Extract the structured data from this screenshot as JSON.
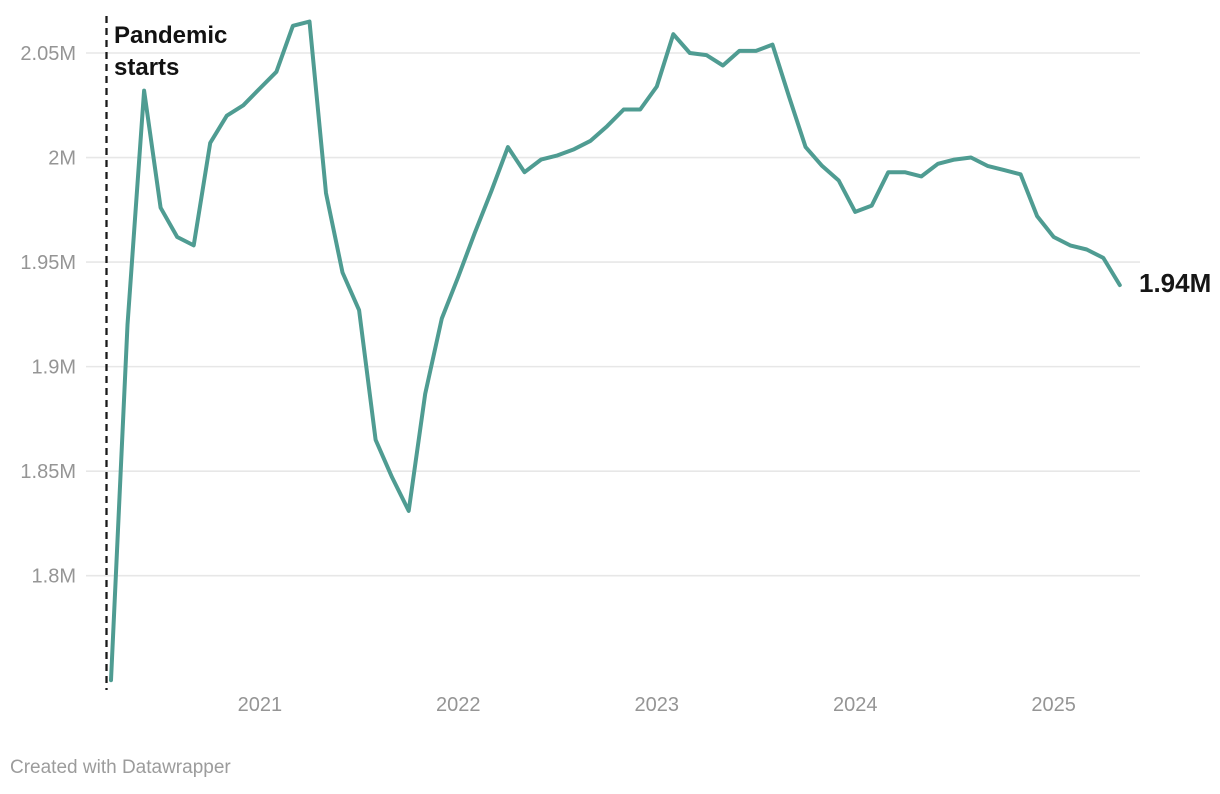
{
  "chart_data": {
    "type": "line",
    "title": "",
    "xlabel": "",
    "ylabel": "",
    "unit": "millions",
    "x": [
      "2020-04",
      "2020-05",
      "2020-06",
      "2020-07",
      "2020-08",
      "2020-09",
      "2020-10",
      "2020-11",
      "2020-12",
      "2021-01",
      "2021-02",
      "2021-03",
      "2021-04",
      "2021-05",
      "2021-06",
      "2021-07",
      "2021-08",
      "2021-09",
      "2021-10",
      "2021-11",
      "2021-12",
      "2022-01",
      "2022-02",
      "2022-03",
      "2022-04",
      "2022-05",
      "2022-06",
      "2022-07",
      "2022-08",
      "2022-09",
      "2022-10",
      "2022-11",
      "2022-12",
      "2023-01",
      "2023-02",
      "2023-03",
      "2023-04",
      "2023-05",
      "2023-06",
      "2023-07",
      "2023-08",
      "2023-09",
      "2023-10",
      "2023-11",
      "2023-12",
      "2024-01",
      "2024-02",
      "2024-03",
      "2024-04",
      "2024-05",
      "2024-06",
      "2024-07",
      "2024-08",
      "2024-09",
      "2024-10",
      "2024-11",
      "2024-12",
      "2025-01",
      "2025-02",
      "2025-03",
      "2025-04",
      "2025-05"
    ],
    "values": [
      1.75,
      1.92,
      2.032,
      1.976,
      1.962,
      1.958,
      2.007,
      2.02,
      2.025,
      2.033,
      2.041,
      2.063,
      2.065,
      1.983,
      1.945,
      1.927,
      1.865,
      1.847,
      1.831,
      1.887,
      1.923,
      1.943,
      1.964,
      1.984,
      2.005,
      1.993,
      1.999,
      2.001,
      2.004,
      2.008,
      2.015,
      2.023,
      2.023,
      2.034,
      2.059,
      2.05,
      2.049,
      2.044,
      2.051,
      2.051,
      2.054,
      2.029,
      2.005,
      1.996,
      1.989,
      1.974,
      1.977,
      1.993,
      1.993,
      1.991,
      1.997,
      1.999,
      2.0,
      1.996,
      1.994,
      1.992,
      1.972,
      1.962,
      1.958,
      1.956,
      1.952,
      1.939
    ],
    "y_ticks": [
      {
        "value": 2.05,
        "label": "2.05M"
      },
      {
        "value": 2.0,
        "label": "2M"
      },
      {
        "value": 1.95,
        "label": "1.95M"
      },
      {
        "value": 1.9,
        "label": "1.9M"
      },
      {
        "value": 1.85,
        "label": "1.85M"
      },
      {
        "value": 1.8,
        "label": "1.8M"
      }
    ],
    "x_ticks": [
      {
        "label": "2021",
        "month_index": 9
      },
      {
        "label": "2022",
        "month_index": 21
      },
      {
        "label": "2023",
        "month_index": 33
      },
      {
        "label": "2024",
        "month_index": 45
      },
      {
        "label": "2025",
        "month_index": 57
      }
    ],
    "ylim": [
      1.745,
      2.068
    ],
    "grid": true,
    "legend_position": "none",
    "line_color": "#4f9c92",
    "grid_color": "#e7e7e7",
    "tick_label_color": "#959595",
    "vline": {
      "label": "Pandemic starts",
      "position": "2020-03",
      "style": "dashed",
      "color": "#1a1a1a"
    },
    "end_label": "1.94M"
  },
  "annotation": {
    "lines": [
      "Pandemic",
      "starts"
    ]
  },
  "end_label": {
    "text": "1.94M"
  },
  "footer": {
    "credit": "Created with Datawrapper"
  }
}
